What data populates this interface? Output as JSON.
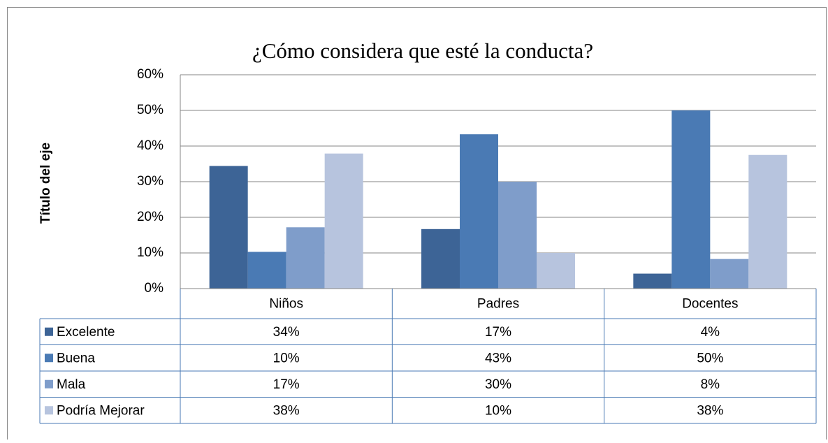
{
  "chart_data": {
    "type": "bar",
    "title": "¿Cómo considera que esté  la conducta?",
    "y_label": "Título del eje",
    "categories": [
      "Niños",
      "Padres",
      "Docentes"
    ],
    "series": [
      {
        "name": "Excelente",
        "color": "#3d6496",
        "values": [
          34.4,
          16.7,
          4.2
        ],
        "value_labels": [
          "34%",
          "17%",
          "4%"
        ]
      },
      {
        "name": "Buena",
        "color": "#4a7ab4",
        "values": [
          10.3,
          43.3,
          50
        ],
        "value_labels": [
          "10%",
          "43%",
          "50%"
        ]
      },
      {
        "name": "Mala",
        "color": "#7f9dca",
        "values": [
          17.2,
          30,
          8.3
        ],
        "value_labels": [
          "17%",
          "30%",
          "8%"
        ]
      },
      {
        "name": "Podría Mejorar",
        "color": "#b7c4de",
        "values": [
          37.9,
          10,
          37.5
        ],
        "value_labels": [
          "38%",
          "10%",
          "38%"
        ]
      }
    ],
    "ylim": [
      0,
      60
    ],
    "yticks": [
      {
        "value": 0,
        "label": "0%"
      },
      {
        "value": 10,
        "label": "10%"
      },
      {
        "value": 20,
        "label": "20%"
      },
      {
        "value": 30,
        "label": "30%"
      },
      {
        "value": 40,
        "label": "40%"
      },
      {
        "value": 50,
        "label": "50%"
      },
      {
        "value": 60,
        "label": "60%"
      }
    ],
    "grid": true
  }
}
